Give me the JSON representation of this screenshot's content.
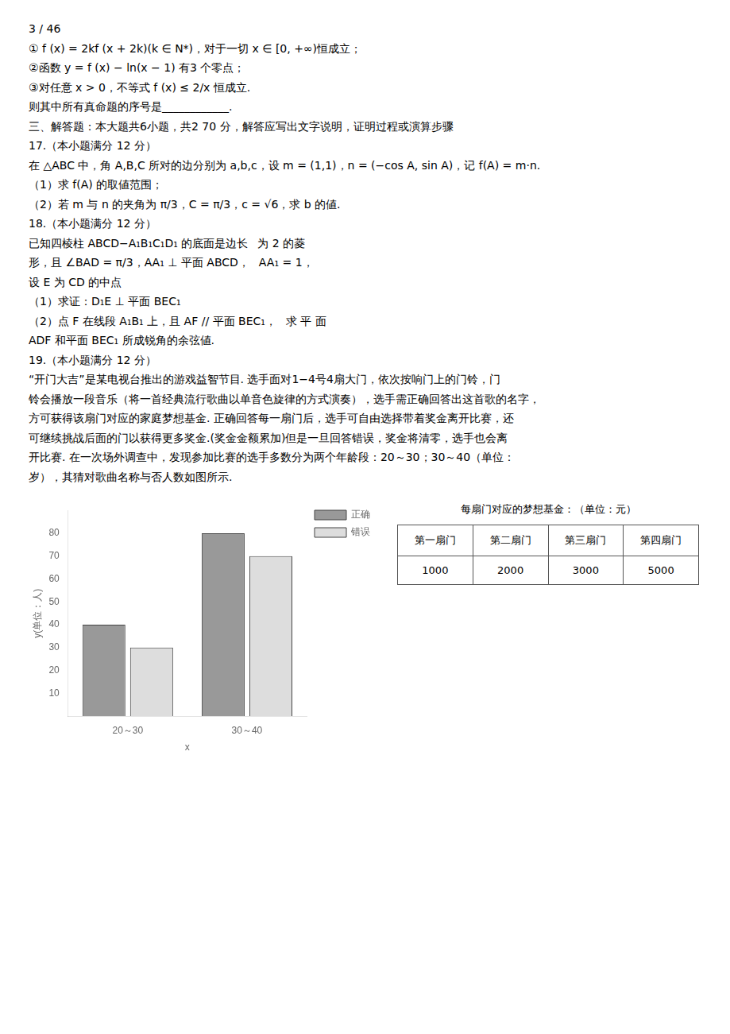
{
  "chart_data": {
    "type": "bar",
    "annotations": [
      "3 / 46",
      "① f (x) = 2kf (x + 2k)(k ∈ N*)，对于一切 x ∈ [0, +∞)恒成立；",
      "②函数 y = f (x) − ln(x − 1) 有3 个零点；",
      "③对任意 x > 0，不等式 f (x) ≤ 2/x 恒成立.",
      "则其中所有真命题的序号是____________.",
      "三、解答题：本大题共6小题，共2 70 分，解答应写出文字说明，证明过程或演算步骤",
      "17.（本小题满分 12 分）",
      "在 △ABC 中，角 A,B,C 所对的边分别为 a,b,c，设 m = (1,1)，n = (−cos A, sin A)，记 f(A) = m·n.",
      "（1）求 f(A) 的取値范围；",
      "（2）若 m 与 n 的夹角为 π/3，C = π/3，c = √6，求 b 的値.",
      "18.（本小题满分 12 分）",
      [
        "已知四棱柱 ABCD−A₁B₁C₁D₁ 的底面是边长",
        "为 2 的菱"
      ],
      [
        "形，且 ∠BAD = π/3，AA₁ ⊥ 平面 ABCD，",
        "AA₁ = 1，"
      ],
      "设 E 为 CD 的中点",
      "（1）求证：D₁E ⊥ 平面 BEC₁",
      [
        "（2）点 F 在线段 A₁B₁ 上，且 AF // 平面 BEC₁，",
        "求  平  面"
      ],
      "ADF 和平面 BEC₁ 所成锐角的余弦値.",
      "19.（本小题满分 12 分）",
      "“开门大吉”是某电视台推出的游戏益智节目. 选手面对1−4号4扇大门，依次按响门上的门铃，门",
      "铃会播放一段音乐（将一首经典流行歌曲以单音色旋律的方式演奏），选手需正确回答出这首歌的名字，",
      "方可获得该扇门对应的家庭梦想基金. 正确回答每一扇门后，选手可自由选择带着奖金离开比赛，还",
      "可继续挑战后面的门以获得更多奖金.(奖金金额累加)但是一旦回答错误，奖金将清零，选手也会离",
      "开比赛. 在一次场外调查中，发现参加比赛的选手多数分为两个年龄段：20～30；30～40（单位：",
      "岁），其猜对歌曲名称与否人数如图所示."
    ],
    "xlabel": "x",
    "ylabel": "y(单位：人)",
    "categories": [
      "20～30",
      "30～40"
    ],
    "series": [
      {
        "name": "正确",
        "color": "#999999",
        "values": [
          40,
          80
        ]
      },
      {
        "name": "错误",
        "color": "#dddddd",
        "values": [
          30,
          70
        ]
      }
    ],
    "ylim": [
      0,
      90
    ],
    "yticks": [
      10,
      20,
      30,
      40,
      50,
      60,
      70,
      80
    ],
    "grid": false,
    "legend": "right",
    "table": {
      "title": "每扇门对应的梦想基金：（单位：元）",
      "headers": [
        "第一扇门",
        "第二扇门",
        "第三扇门",
        "第四扇门"
      ],
      "values": [
        "1000",
        "2000",
        "3000",
        "5000"
      ]
    }
  }
}
